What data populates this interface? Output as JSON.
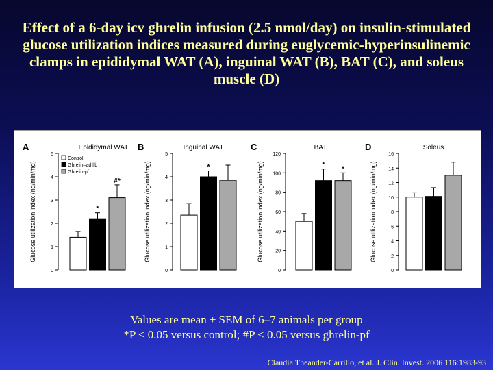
{
  "slide": {
    "title": "Effect of a 6-day icv ghrelin infusion (2.5 nmol/day) on insulin-stimulated glucose utilization indices measured during euglycemic-hyperinsulinemic clamps in epididymal WAT (A), inguinal WAT (B), BAT (C), and soleus muscle (D)",
    "note_line1": "Values are mean ± SEM of 6–7 animals per group",
    "note_line2": "*P < 0.05 versus control; #P < 0.05 versus ghrelin-pf",
    "citation": "Claudia Theander-Carrillo, et al. J. Clin. Invest. 2006 116:1983-93"
  },
  "colors": {
    "control": "#ffffff",
    "ghrelin_ad_lib": "#000000",
    "ghrelin_pf": "#a8a8a8",
    "title_text": "#ffff99"
  },
  "legend": [
    "Control",
    "Ghrelin–ad lib",
    "Ghrelin-pf"
  ],
  "chart_data": [
    {
      "type": "bar",
      "letter": "A",
      "title": "Epididymal WAT",
      "ylabel": "Glucose utilization index (ng/min/mg)",
      "ylim": [
        0,
        5
      ],
      "yticks": [
        0,
        1,
        2,
        3,
        4,
        5
      ],
      "categories": [
        "Control",
        "Ghrelin–ad lib",
        "Ghrelin-pf"
      ],
      "values": [
        1.4,
        2.2,
        3.1
      ],
      "errors": [
        0.25,
        0.25,
        0.55
      ],
      "annotations": [
        "",
        "*",
        "#*"
      ]
    },
    {
      "type": "bar",
      "letter": "B",
      "title": "Inguinal WAT",
      "ylabel": "Glucose utilization index (ng/min/mg)",
      "ylim": [
        0,
        5
      ],
      "yticks": [
        0,
        1,
        2,
        3,
        4,
        5
      ],
      "categories": [
        "Control",
        "Ghrelin–ad lib",
        "Ghrelin-pf"
      ],
      "values": [
        2.35,
        4.0,
        3.85
      ],
      "errors": [
        0.5,
        0.25,
        0.65
      ],
      "annotations": [
        "",
        "*",
        ""
      ]
    },
    {
      "type": "bar",
      "letter": "C",
      "title": "BAT",
      "ylabel": "Glucose utilization index (ng/min/mg)",
      "ylim": [
        0,
        120
      ],
      "yticks": [
        0,
        20,
        40,
        60,
        80,
        100,
        120
      ],
      "categories": [
        "Control",
        "Ghrelin–ad lib",
        "Ghrelin-pf"
      ],
      "values": [
        50,
        92,
        92
      ],
      "errors": [
        8,
        12,
        8
      ],
      "annotations": [
        "",
        "*",
        "*"
      ]
    },
    {
      "type": "bar",
      "letter": "D",
      "title": "Soleus",
      "ylabel": "Glucose utilization index (ng/min/mg)",
      "ylim": [
        0,
        16
      ],
      "yticks": [
        0,
        2,
        4,
        6,
        8,
        10,
        12,
        14,
        16
      ],
      "categories": [
        "Control",
        "Ghrelin–ad lib",
        "Ghrelin-pf"
      ],
      "values": [
        10,
        10.1,
        13
      ],
      "errors": [
        0.6,
        1.2,
        1.8
      ],
      "annotations": [
        "",
        "",
        ""
      ]
    }
  ]
}
